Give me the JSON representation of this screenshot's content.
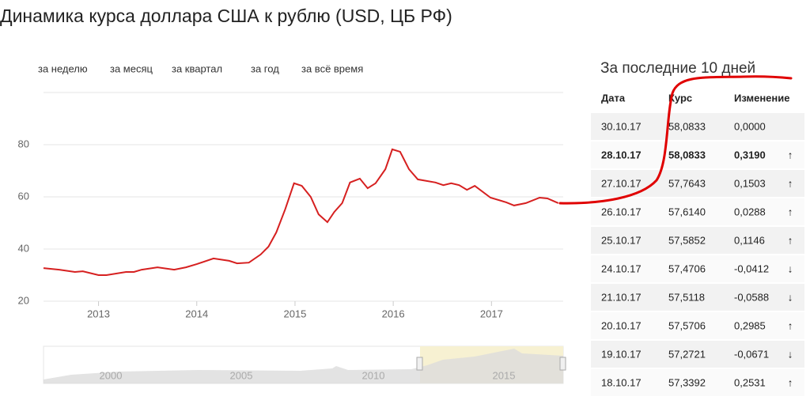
{
  "title": "Динамика курса доллара США к рублю (USD, ЦБ РФ)",
  "tabs": [
    "за неделю",
    "за месяц",
    "за квартал",
    "за год",
    "за всё время"
  ],
  "chart_data": {
    "type": "line",
    "x": [
      2012.44,
      2012.6,
      2012.76,
      2012.84,
      2013.0,
      2013.08,
      2013.28,
      2013.36,
      2013.44,
      2013.6,
      2013.77,
      2013.89,
      2014.0,
      2014.17,
      2014.33,
      2014.41,
      2014.53,
      2014.65,
      2014.73,
      2014.81,
      2014.9,
      2014.99,
      2015.07,
      2015.16,
      2015.24,
      2015.33,
      2015.4,
      2015.48,
      2015.56,
      2015.66,
      2015.74,
      2015.82,
      2015.92,
      2015.99,
      2016.07,
      2016.16,
      2016.25,
      2016.43,
      2016.51,
      2016.59,
      2016.67,
      2016.75,
      2016.83,
      2016.99,
      2017.15,
      2017.23,
      2017.35,
      2017.49,
      2017.57,
      2017.68
    ],
    "series": [
      {
        "color": "#d62020",
        "values": [
          32.7,
          32.1,
          31.2,
          31.5,
          30.0,
          30.0,
          31.2,
          31.2,
          32.1,
          33.0,
          32.1,
          33.0,
          34.2,
          36.4,
          35.5,
          34.5,
          34.8,
          37.9,
          40.9,
          46.4,
          55.2,
          65.2,
          64.2,
          60.0,
          53.3,
          50.3,
          54.2,
          57.6,
          65.5,
          67.0,
          63.3,
          65.2,
          70.6,
          78.2,
          77.3,
          70.6,
          66.7,
          65.5,
          64.5,
          65.2,
          64.5,
          62.7,
          64.2,
          59.7,
          57.9,
          56.7,
          57.6,
          59.7,
          59.4,
          57.6
        ]
      }
    ],
    "xlim": [
      2012.44,
      2017.73
    ],
    "xticks": [
      2013,
      2014,
      2015,
      2016,
      2017
    ],
    "ylim": [
      20,
      100
    ],
    "yticks": [
      20,
      40,
      60,
      80
    ],
    "grid": true
  },
  "navigator": {
    "labels": [
      "2000",
      "2005",
      "2010",
      "2015"
    ]
  },
  "table": {
    "title": "За последние 10 дней",
    "header": [
      "Дата",
      "Курс",
      "Изменение"
    ],
    "rows": [
      [
        "30.10.17",
        "58,0833",
        "0,0000"
      ],
      [
        "28.10.17",
        "58,0833",
        "0,3190",
        "↑"
      ],
      [
        "27.10.17",
        "57,7643",
        "0,1503",
        "↑"
      ],
      [
        "26.10.17",
        "57,6140",
        "0,0288",
        "↑"
      ],
      [
        "25.10.17",
        "57,5852",
        "0,1146",
        "↑"
      ],
      [
        "24.10.17",
        "57,4706",
        "-0,0412",
        "↓"
      ],
      [
        "21.10.17",
        "57,5118",
        "-0,0588",
        "↓"
      ],
      [
        "20.10.17",
        "57,5706",
        "0,2985",
        "↑"
      ],
      [
        "19.10.17",
        "57,2721",
        "-0,0671",
        "↓"
      ],
      [
        "18.10.17",
        "57,3392",
        "0,2531",
        "↑"
      ]
    ]
  }
}
